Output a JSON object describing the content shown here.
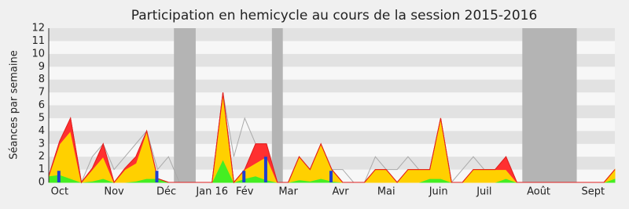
{
  "chart_data": {
    "type": "area",
    "title": "Participation en hemicycle au cours de la session 2015-2016",
    "ylabel": "Séances par semaine",
    "x": [
      0,
      1,
      2,
      3,
      4,
      5,
      6,
      7,
      8,
      9,
      10,
      11,
      12,
      13,
      14,
      15,
      16,
      17,
      18,
      19,
      20,
      21,
      22,
      23,
      24,
      25,
      26,
      27,
      28,
      29,
      30,
      31,
      32,
      33,
      34,
      35,
      36,
      37,
      38,
      39,
      40,
      41,
      42,
      43,
      44,
      45,
      46,
      47,
      48,
      49,
      50,
      51,
      52
    ],
    "xlim": [
      0,
      52
    ],
    "xticks": [
      {
        "value": 1,
        "label": "Oct"
      },
      {
        "value": 6,
        "label": "Nov"
      },
      {
        "value": 10.8,
        "label": "Déc"
      },
      {
        "value": 15,
        "label": "Jan 16"
      },
      {
        "value": 18,
        "label": "Fév"
      },
      {
        "value": 22,
        "label": "Mar"
      },
      {
        "value": 26.8,
        "label": "Avr"
      },
      {
        "value": 31,
        "label": "Mai"
      },
      {
        "value": 35.8,
        "label": "Juin"
      },
      {
        "value": 40,
        "label": "Juil"
      },
      {
        "value": 45,
        "label": "Août"
      },
      {
        "value": 50,
        "label": "Sept"
      }
    ],
    "ylim": [
      0,
      12
    ],
    "yticks": [
      0,
      1,
      2,
      3,
      4,
      5,
      6,
      7,
      8,
      9,
      10,
      11,
      12
    ],
    "grid": true,
    "bands": [
      [
        11.5,
        13.5
      ],
      [
        20.5,
        21.5
      ],
      [
        43.5,
        48.5
      ]
    ],
    "band_color": "#b4b4b4",
    "series": [
      {
        "color": "#44ee22",
        "values": [
          0.5,
          0.6,
          0.3,
          0,
          0.1,
          0.3,
          0,
          0,
          0.1,
          0.3,
          0.3,
          0,
          0,
          0,
          0,
          0,
          1.8,
          0,
          0.3,
          0.5,
          0.2,
          0,
          0,
          0.2,
          0.1,
          0.3,
          0.1,
          0,
          0,
          0,
          0,
          0,
          0,
          0,
          0,
          0.3,
          0.3,
          0,
          0,
          0,
          0,
          0,
          0.3,
          0,
          0,
          0,
          0,
          0,
          0,
          0,
          0,
          0,
          0.3
        ]
      },
      {
        "color": "#ffd000",
        "values": [
          0,
          2.4,
          3.7,
          0,
          0.9,
          1.7,
          0,
          1,
          1.4,
          3.7,
          0,
          0,
          0,
          0,
          0,
          0,
          5.1,
          0,
          0.7,
          1,
          1.8,
          0,
          0,
          1.8,
          0.9,
          2.7,
          0.9,
          0,
          0,
          0,
          1,
          1,
          0,
          1,
          1,
          0.7,
          4.7,
          0,
          0,
          1,
          1,
          1,
          0.7,
          0,
          0,
          0,
          0,
          0,
          0,
          0,
          0,
          0,
          0.7
        ]
      },
      {
        "color": "#ff3030",
        "values": [
          0,
          0.2,
          1,
          0,
          0.1,
          1,
          0,
          0.1,
          0.5,
          0,
          0,
          0,
          0,
          0,
          0,
          0,
          0.1,
          0,
          0,
          1.5,
          1,
          0,
          0,
          0,
          0,
          0,
          0,
          0,
          0,
          0,
          0,
          0,
          0,
          0,
          0,
          0,
          0,
          0,
          0,
          0,
          0,
          0,
          1,
          0,
          0,
          0,
          0,
          0,
          0,
          0,
          0,
          0,
          0
        ]
      }
    ],
    "line": {
      "color": "#aaaaaa",
      "values": [
        0.5,
        3.2,
        5,
        0,
        2,
        3,
        1,
        2,
        3,
        4,
        1,
        2,
        0,
        0,
        0,
        0,
        7,
        2,
        5,
        3,
        3,
        0,
        0,
        2,
        1,
        3,
        1,
        1,
        0,
        0,
        2,
        1,
        1,
        2,
        1,
        1,
        5,
        0,
        1,
        2,
        1,
        1,
        2,
        0,
        0,
        0,
        0,
        0,
        0,
        0,
        0,
        0,
        1
      ]
    },
    "bars": {
      "color": "#1e3fd0",
      "x": [
        1,
        10,
        18,
        20,
        26
      ],
      "values": [
        0.9,
        0.9,
        0.9,
        2,
        0.9
      ]
    }
  }
}
